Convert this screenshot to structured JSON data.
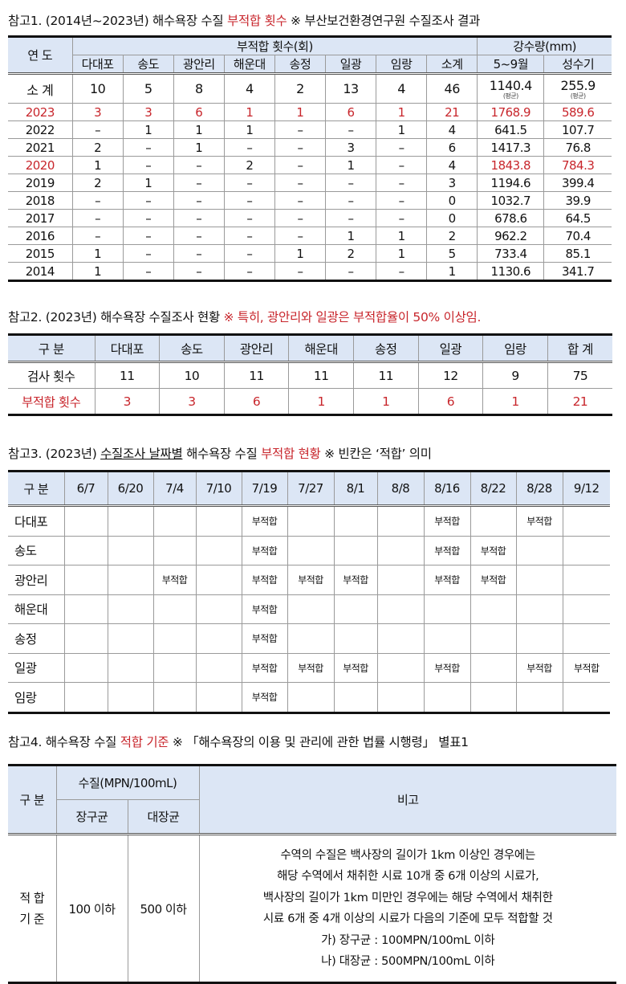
{
  "colors": {
    "accent_red": "#c8262c",
    "header_bg": "#dce6f5"
  },
  "ref1": {
    "title_prefix": "참고1. (2014년~2023년) 해수욕장 수질 ",
    "title_red": "부적합 횟수",
    "title_suffix": " ※ 부산보건환경연구원 수질조사 결과",
    "col_year": "연 도",
    "group_count": "부적합 횟수(회)",
    "group_rain": "강수량(mm)",
    "beaches": [
      "다대포",
      "송도",
      "광안리",
      "해운대",
      "송정",
      "일광",
      "임랑",
      "소계"
    ],
    "rain_cols": [
      "5~9월",
      "성수기"
    ],
    "summary": {
      "label": "소 계",
      "values": [
        "10",
        "5",
        "8",
        "4",
        "2",
        "13",
        "4",
        "46"
      ],
      "rain": [
        "1140.4",
        "255.9"
      ],
      "rain_note": "(평균)"
    },
    "rows": [
      {
        "year": "2023",
        "values": [
          "3",
          "3",
          "6",
          "1",
          "1",
          "6",
          "1",
          "21"
        ],
        "rain": [
          "1768.9",
          "589.6"
        ],
        "highlight": "all"
      },
      {
        "year": "2022",
        "values": [
          "–",
          "1",
          "1",
          "1",
          "–",
          "–",
          "1",
          "4"
        ],
        "rain": [
          "641.5",
          "107.7"
        ],
        "highlight": "none"
      },
      {
        "year": "2021",
        "values": [
          "2",
          "–",
          "1",
          "–",
          "–",
          "3",
          "–",
          "6"
        ],
        "rain": [
          "1417.3",
          "76.8"
        ],
        "highlight": "none"
      },
      {
        "year": "2020",
        "values": [
          "1",
          "–",
          "–",
          "2",
          "–",
          "1",
          "–",
          "4"
        ],
        "rain": [
          "1843.8",
          "784.3"
        ],
        "highlight": "year-rain"
      },
      {
        "year": "2019",
        "values": [
          "2",
          "1",
          "–",
          "–",
          "–",
          "–",
          "–",
          "3"
        ],
        "rain": [
          "1194.6",
          "399.4"
        ],
        "highlight": "none"
      },
      {
        "year": "2018",
        "values": [
          "–",
          "–",
          "–",
          "–",
          "–",
          "–",
          "–",
          "0"
        ],
        "rain": [
          "1032.7",
          "39.9"
        ],
        "highlight": "none"
      },
      {
        "year": "2017",
        "values": [
          "–",
          "–",
          "–",
          "–",
          "–",
          "–",
          "–",
          "0"
        ],
        "rain": [
          "678.6",
          "64.5"
        ],
        "highlight": "none"
      },
      {
        "year": "2016",
        "values": [
          "–",
          "–",
          "–",
          "–",
          "–",
          "1",
          "1",
          "2"
        ],
        "rain": [
          "962.2",
          "70.4"
        ],
        "highlight": "none"
      },
      {
        "year": "2015",
        "values": [
          "1",
          "–",
          "–",
          "–",
          "1",
          "2",
          "1",
          "5"
        ],
        "rain": [
          "733.4",
          "85.1"
        ],
        "highlight": "none"
      },
      {
        "year": "2014",
        "values": [
          "1",
          "–",
          "–",
          "–",
          "–",
          "–",
          "–",
          "1"
        ],
        "rain": [
          "1130.6",
          "341.7"
        ],
        "highlight": "none"
      }
    ]
  },
  "ref2": {
    "title_prefix": "참고2. (2023년) 해수욕장 수질조사 현황 ",
    "title_red": " ※ 특히, 광안리와 일광은 부적합율이 50% 이상임.",
    "headers": [
      "구 분",
      "다대포",
      "송도",
      "광안리",
      "해운대",
      "송정",
      "일광",
      "임랑",
      "합 계"
    ],
    "rows": [
      {
        "label": "검사 횟수",
        "values": [
          "11",
          "10",
          "11",
          "11",
          "11",
          "12",
          "9",
          "75"
        ],
        "red": false
      },
      {
        "label": "부적합 횟수",
        "values": [
          "3",
          "3",
          "6",
          "1",
          "1",
          "6",
          "1",
          "21"
        ],
        "red": true
      }
    ]
  },
  "ref3": {
    "title_prefix": "참고3. (2023년) ",
    "title_underline": "수질조사 날짜별",
    "title_mid": " 해수욕장 수질 ",
    "title_red": "부적합 현황",
    "title_suffix": "  ※ 빈칸은 ‘적합’ 의미",
    "col_label": "구 분",
    "dates": [
      "6/7",
      "6/20",
      "7/4",
      "7/10",
      "7/19",
      "7/27",
      "8/1",
      "8/8",
      "8/16",
      "8/22",
      "8/28",
      "9/12"
    ],
    "rows": [
      {
        "beach": "다대포",
        "cells": [
          "",
          "",
          "",
          "",
          "부적합",
          "",
          "",
          "",
          "부적합",
          "",
          "부적합",
          ""
        ]
      },
      {
        "beach": "송도",
        "cells": [
          "",
          "",
          "",
          "",
          "부적합",
          "",
          "",
          "",
          "부적합",
          "부적합",
          "",
          ""
        ]
      },
      {
        "beach": "광안리",
        "cells": [
          "",
          "",
          "부적합",
          "",
          "부적합",
          "부적합",
          "부적합",
          "",
          "부적합",
          "부적합",
          "",
          ""
        ]
      },
      {
        "beach": "해운대",
        "cells": [
          "",
          "",
          "",
          "",
          "부적합",
          "",
          "",
          "",
          "",
          "",
          "",
          ""
        ]
      },
      {
        "beach": "송정",
        "cells": [
          "",
          "",
          "",
          "",
          "부적합",
          "",
          "",
          "",
          "",
          "",
          "",
          ""
        ]
      },
      {
        "beach": "일광",
        "cells": [
          "",
          "",
          "",
          "",
          "부적합",
          "부적합",
          "부적합",
          "",
          "부적합",
          "",
          "부적합",
          "부적합"
        ]
      },
      {
        "beach": "임랑",
        "cells": [
          "",
          "",
          "",
          "",
          "부적합",
          "",
          "",
          "",
          "",
          "",
          "",
          ""
        ]
      }
    ]
  },
  "ref4": {
    "title_prefix": "참고4. 해수욕장 수질 ",
    "title_red": "적합 기준",
    "title_suffix": "  ※ 「해수욕장의 이용 및 관리에 관한 법률 시행령」 별표1",
    "col_label": "구 분",
    "group_quality": "수질(MPN/100mL)",
    "sub_cols": [
      "장구균",
      "대장균"
    ],
    "col_note": "비고",
    "row_label_1": "적 합",
    "row_label_2": "기 준",
    "enterococcus": "100 이하",
    "ecoli": "500 이하",
    "note_lines": [
      "수역의 수질은 백사장의 길이가 1km 이상인 경우에는",
      "해당 수역에서 채취한 시료 10개 중 6개 이상의 시료가,",
      "백사장의 길이가 1km 미만인 경우에는 해당 수역에서 채취한",
      "시료 6개 중 4개 이상의 시료가 다음의 기준에 모두 적합할 것",
      "가) 장구균 : 100MPN/100mL 이하",
      "나) 대장균 : 500MPN/100mL 이하"
    ]
  }
}
